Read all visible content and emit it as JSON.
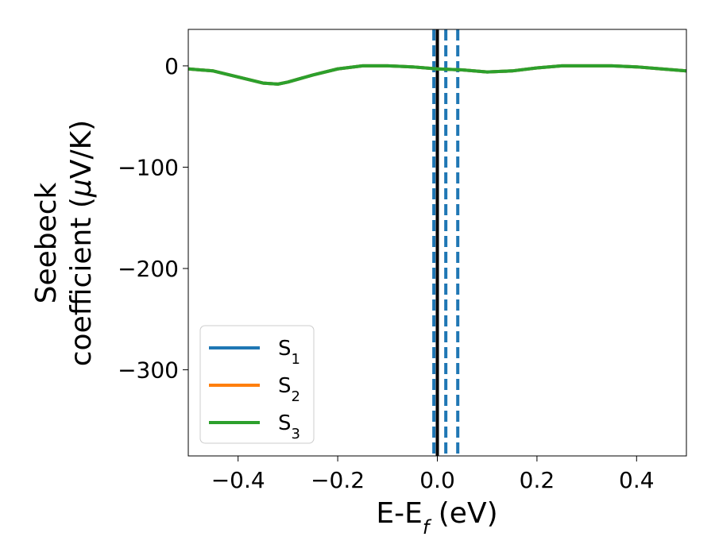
{
  "chart_data": {
    "type": "line",
    "xlabel": "E-E",
    "xlabel_sub": "f",
    "xlabel_unit": " (eV)",
    "ylabel_line1": "Seebeck",
    "ylabel_line2_prefix": "coefficient  (",
    "ylabel_mu": "μ",
    "ylabel_line2_suffix": "V/K)",
    "xlim": [
      -0.5,
      0.5
    ],
    "ylim": [
      -385,
      36
    ],
    "xticks": [
      -0.4,
      -0.2,
      0.0,
      0.2,
      0.4
    ],
    "xtick_labels": [
      "−0.4",
      "−0.2",
      "0.0",
      "0.2",
      "0.4"
    ],
    "yticks": [
      0,
      -100,
      -200,
      -300
    ],
    "ytick_labels": [
      "0",
      "−100",
      "−200",
      "−300"
    ],
    "grid": false,
    "legend_position": "lower-left",
    "series": [
      {
        "name": "S",
        "sub": "1",
        "color": "#1f77b4",
        "x": [
          -0.5,
          -0.45,
          -0.4,
          -0.35,
          -0.32,
          -0.3,
          -0.25,
          -0.2,
          -0.15,
          -0.1,
          -0.05,
          0.0,
          0.05,
          0.1,
          0.15,
          0.2,
          0.25,
          0.3,
          0.35,
          0.4,
          0.45,
          0.5
        ],
        "y": [
          -3,
          -5,
          -11,
          -17,
          -18,
          -16,
          -9,
          -3,
          0,
          0,
          -1,
          -3,
          -4,
          -6,
          -5,
          -2,
          0,
          0,
          0,
          -1,
          -3,
          -5
        ]
      },
      {
        "name": "S",
        "sub": "2",
        "color": "#ff7f0e",
        "x": [
          -0.5,
          -0.45,
          -0.4,
          -0.35,
          -0.32,
          -0.3,
          -0.25,
          -0.2,
          -0.15,
          -0.1,
          -0.05,
          0.0,
          0.05,
          0.1,
          0.15,
          0.2,
          0.25,
          0.3,
          0.35,
          0.4,
          0.45,
          0.5
        ],
        "y": [
          -3,
          -5,
          -11,
          -17,
          -18,
          -16,
          -9,
          -3,
          0,
          0,
          -1,
          -3,
          -4,
          -6,
          -5,
          -2,
          0,
          0,
          0,
          -1,
          -3,
          -5
        ]
      },
      {
        "name": "S",
        "sub": "3",
        "color": "#2ca02c",
        "x": [
          -0.5,
          -0.45,
          -0.4,
          -0.35,
          -0.32,
          -0.3,
          -0.25,
          -0.2,
          -0.15,
          -0.1,
          -0.05,
          0.0,
          0.05,
          0.1,
          0.15,
          0.2,
          0.25,
          0.3,
          0.35,
          0.4,
          0.45,
          0.5
        ],
        "y": [
          -3,
          -5,
          -11,
          -17,
          -18,
          -16,
          -9,
          -3,
          0,
          0,
          -1,
          -3,
          -4,
          -6,
          -5,
          -2,
          0,
          0,
          0,
          -1,
          -3,
          -5
        ]
      }
    ],
    "vertical_lines": [
      {
        "x": 0.0,
        "style": "solid",
        "color": "#000000"
      },
      {
        "x": -0.007,
        "style": "dashed",
        "color": "#1f77b4"
      },
      {
        "x": 0.017,
        "style": "dashed",
        "color": "#1f77b4"
      },
      {
        "x": 0.041,
        "style": "dashed",
        "color": "#1f77b4"
      }
    ]
  }
}
